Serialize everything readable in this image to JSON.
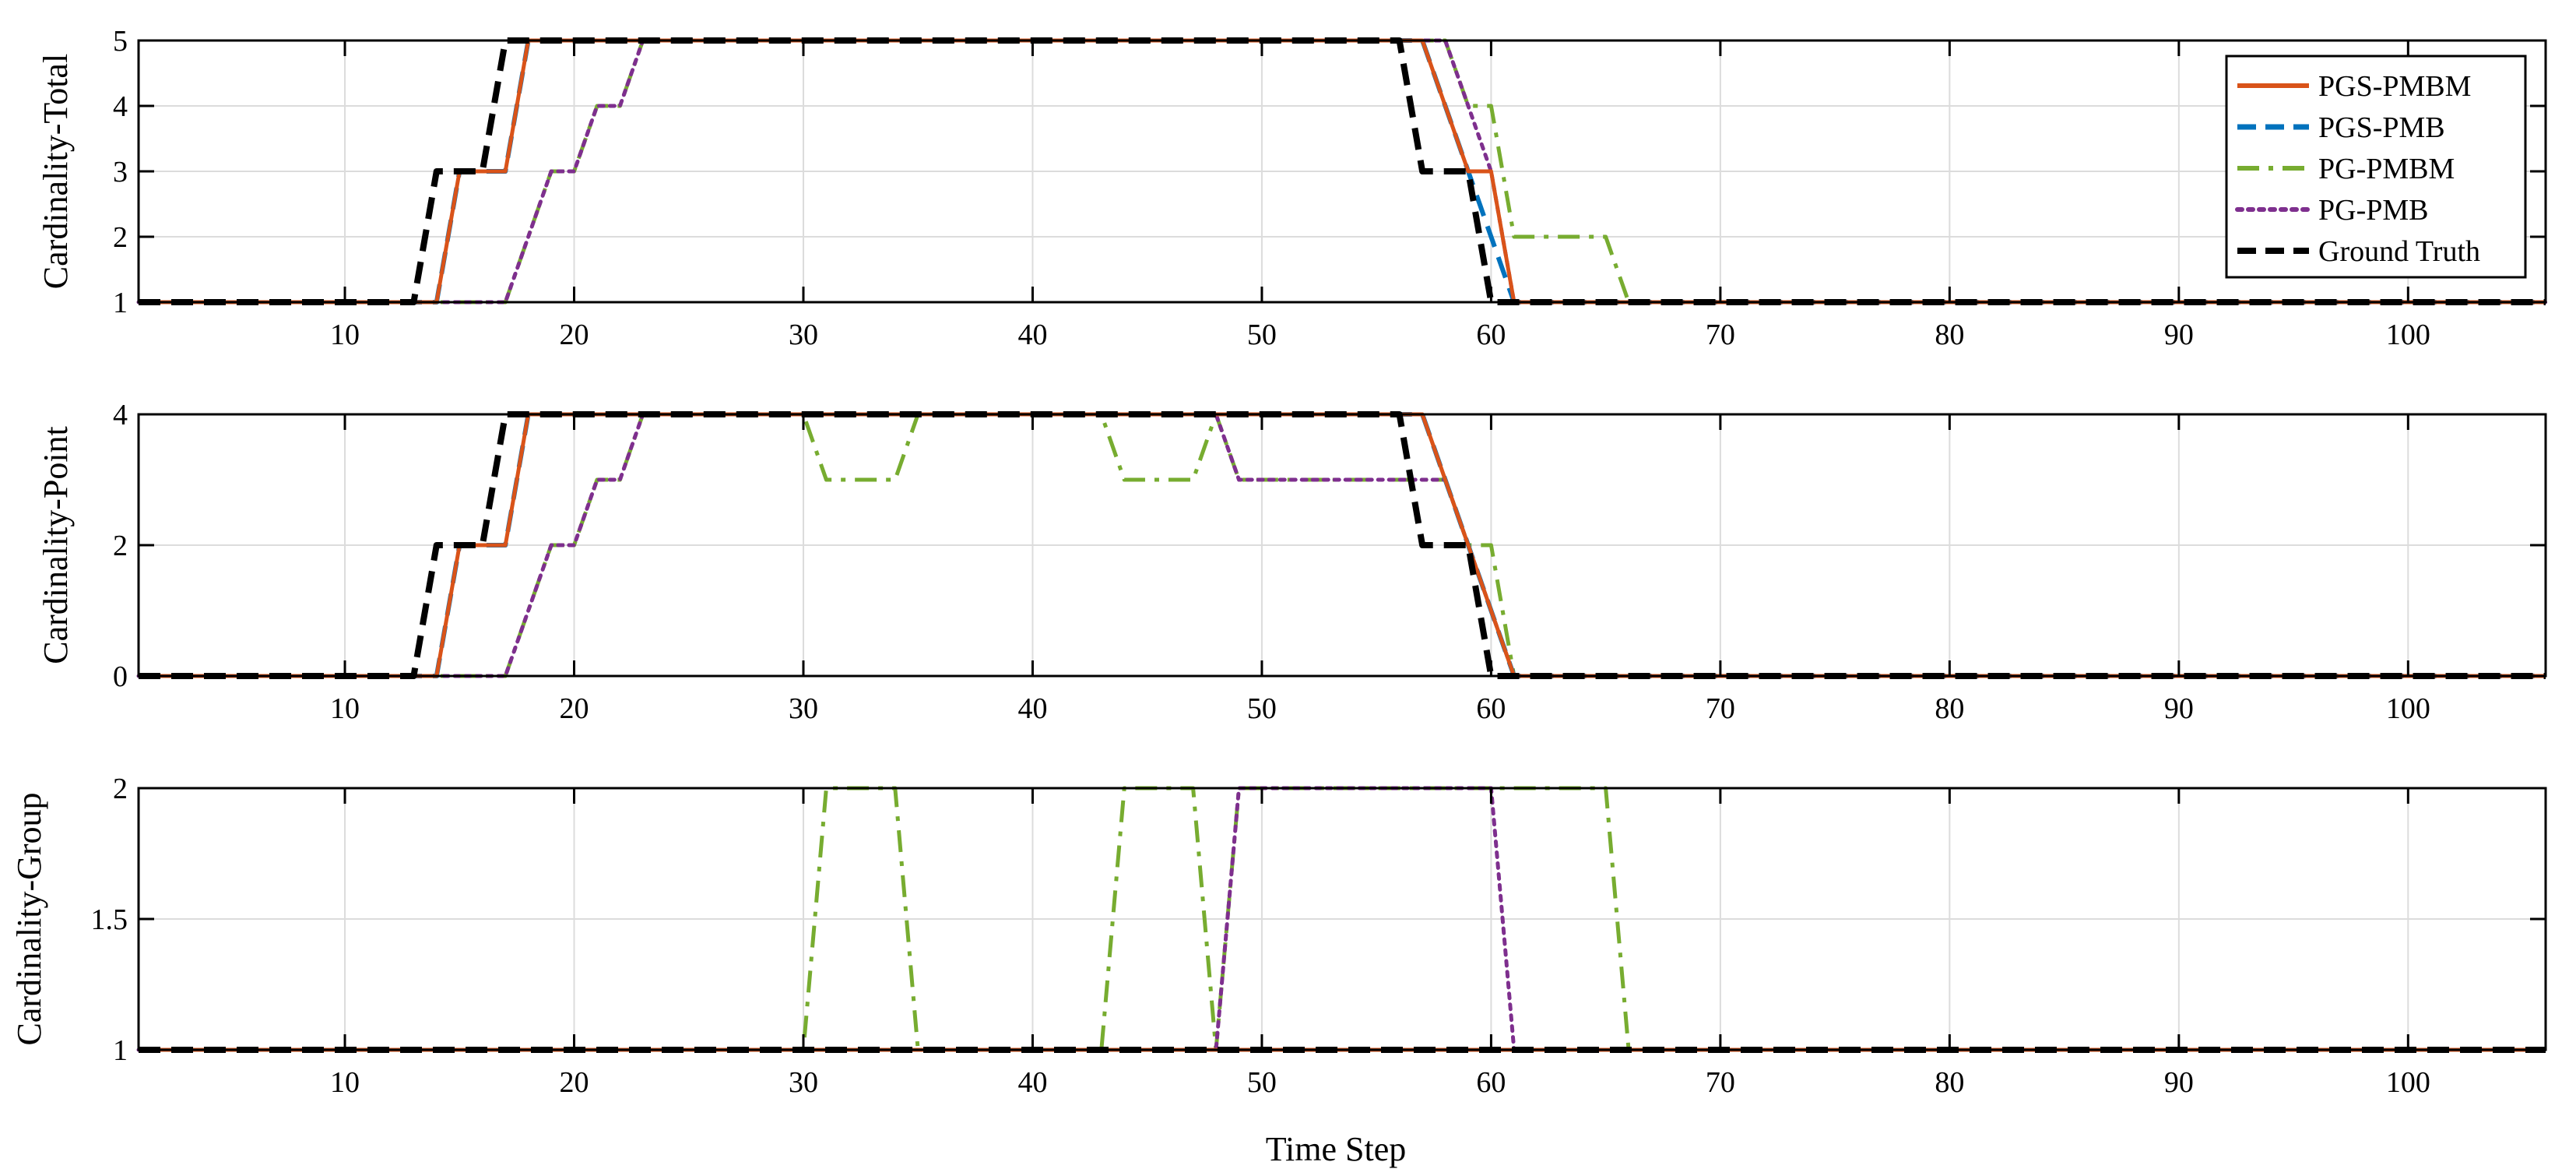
{
  "chart_data": {
    "type": "line",
    "xlabel": "Time Step",
    "xlim": [
      1,
      106
    ],
    "xticks": [
      10,
      20,
      30,
      40,
      50,
      60,
      70,
      80,
      90,
      100
    ],
    "grid": true,
    "legend": {
      "location": "top-right",
      "entries": [
        "PGS-PMBM",
        "PGS-PMB",
        "PG-PMBM",
        "PG-PMB",
        "Ground Truth"
      ]
    },
    "series_styles": [
      {
        "name": "PGS-PMBM",
        "color": "#D95319",
        "dash": "solid"
      },
      {
        "name": "PGS-PMB",
        "color": "#0072BD",
        "dash": "dashed"
      },
      {
        "name": "PG-PMBM",
        "color": "#77AC30",
        "dash": "dash-dot"
      },
      {
        "name": "PG-PMB",
        "color": "#7E2F8E",
        "dash": "dotted"
      },
      {
        "name": "Ground Truth",
        "color": "#000000",
        "dash": "dashed"
      }
    ],
    "subplots": [
      {
        "ylabel": "Cardinality-Total",
        "ylim": [
          1,
          5
        ],
        "yticks": [
          1,
          2,
          3,
          4,
          5
        ],
        "yticklabels": [
          "1",
          "2",
          "3",
          "4",
          "5"
        ],
        "series": [
          {
            "name": "PGS-PMBM",
            "points": [
              [
                1,
                1
              ],
              [
                14,
                1
              ],
              [
                15,
                3
              ],
              [
                17,
                3
              ],
              [
                18,
                5
              ],
              [
                57,
                5
              ],
              [
                58,
                4
              ],
              [
                59,
                3
              ],
              [
                60,
                3
              ],
              [
                61,
                1
              ],
              [
                106,
                1
              ]
            ]
          },
          {
            "name": "PGS-PMB",
            "points": [
              [
                1,
                1
              ],
              [
                14,
                1
              ],
              [
                15,
                3
              ],
              [
                17,
                3
              ],
              [
                18,
                5
              ],
              [
                57,
                5
              ],
              [
                58,
                4
              ],
              [
                59,
                3
              ],
              [
                60,
                2
              ],
              [
                61,
                1
              ],
              [
                106,
                1
              ]
            ]
          },
          {
            "name": "PG-PMBM",
            "points": [
              [
                1,
                1
              ],
              [
                17,
                1
              ],
              [
                19,
                3
              ],
              [
                20,
                3
              ],
              [
                21,
                4
              ],
              [
                22,
                4
              ],
              [
                23,
                5
              ],
              [
                58,
                5
              ],
              [
                59,
                4
              ],
              [
                60,
                4
              ],
              [
                61,
                2
              ],
              [
                65,
                2
              ],
              [
                66,
                1
              ],
              [
                106,
                1
              ]
            ]
          },
          {
            "name": "PG-PMB",
            "points": [
              [
                1,
                1
              ],
              [
                17,
                1
              ],
              [
                19,
                3
              ],
              [
                20,
                3
              ],
              [
                21,
                4
              ],
              [
                22,
                4
              ],
              [
                23,
                5
              ],
              [
                58,
                5
              ],
              [
                59,
                4
              ],
              [
                60,
                3
              ],
              [
                61,
                1
              ],
              [
                106,
                1
              ]
            ]
          },
          {
            "name": "Ground Truth",
            "points": [
              [
                1,
                1
              ],
              [
                13,
                1
              ],
              [
                14,
                3
              ],
              [
                16,
                3
              ],
              [
                17,
                5
              ],
              [
                56,
                5
              ],
              [
                57,
                3
              ],
              [
                59,
                3
              ],
              [
                60,
                1
              ],
              [
                106,
                1
              ]
            ]
          }
        ]
      },
      {
        "ylabel": "Cardinality-Point",
        "ylim": [
          0,
          4
        ],
        "yticks": [
          0,
          2,
          4
        ],
        "yticklabels": [
          "0",
          "2",
          "4"
        ],
        "series": [
          {
            "name": "PGS-PMBM",
            "points": [
              [
                1,
                0
              ],
              [
                14,
                0
              ],
              [
                15,
                2
              ],
              [
                17,
                2
              ],
              [
                18,
                4
              ],
              [
                57,
                4
              ],
              [
                58,
                3
              ],
              [
                59,
                2
              ],
              [
                60,
                1
              ],
              [
                61,
                0
              ],
              [
                106,
                0
              ]
            ]
          },
          {
            "name": "PGS-PMB",
            "points": [
              [
                1,
                0
              ],
              [
                14,
                0
              ],
              [
                15,
                2
              ],
              [
                17,
                2
              ],
              [
                18,
                4
              ],
              [
                57,
                4
              ],
              [
                58,
                3
              ],
              [
                59,
                2
              ],
              [
                60,
                1
              ],
              [
                61,
                0
              ],
              [
                106,
                0
              ]
            ]
          },
          {
            "name": "PG-PMBM",
            "points": [
              [
                1,
                0
              ],
              [
                17,
                0
              ],
              [
                19,
                2
              ],
              [
                20,
                2
              ],
              [
                21,
                3
              ],
              [
                22,
                3
              ],
              [
                23,
                4
              ],
              [
                30,
                4
              ],
              [
                31,
                3
              ],
              [
                34,
                3
              ],
              [
                35,
                4
              ],
              [
                43,
                4
              ],
              [
                44,
                3
              ],
              [
                47,
                3
              ],
              [
                48,
                4
              ],
              [
                49,
                3
              ],
              [
                58,
                3
              ],
              [
                59,
                2
              ],
              [
                60,
                2
              ],
              [
                61,
                0
              ],
              [
                106,
                0
              ]
            ]
          },
          {
            "name": "PG-PMB",
            "points": [
              [
                1,
                0
              ],
              [
                17,
                0
              ],
              [
                19,
                2
              ],
              [
                20,
                2
              ],
              [
                21,
                3
              ],
              [
                22,
                3
              ],
              [
                23,
                4
              ],
              [
                48,
                4
              ],
              [
                49,
                3
              ],
              [
                58,
                3
              ],
              [
                59,
                2
              ],
              [
                60,
                1
              ],
              [
                61,
                0
              ],
              [
                106,
                0
              ]
            ]
          },
          {
            "name": "Ground Truth",
            "points": [
              [
                1,
                0
              ],
              [
                13,
                0
              ],
              [
                14,
                2
              ],
              [
                16,
                2
              ],
              [
                17,
                4
              ],
              [
                56,
                4
              ],
              [
                57,
                2
              ],
              [
                59,
                2
              ],
              [
                60,
                0
              ],
              [
                106,
                0
              ]
            ]
          }
        ]
      },
      {
        "ylabel": "Cardinality-Group",
        "ylim": [
          1,
          2
        ],
        "yticks": [
          1,
          1.5,
          2
        ],
        "yticklabels": [
          "1",
          "1.5",
          "2"
        ],
        "series": [
          {
            "name": "PGS-PMBM",
            "points": [
              [
                1,
                1
              ],
              [
                106,
                1
              ]
            ]
          },
          {
            "name": "PGS-PMB",
            "points": [
              [
                1,
                1
              ],
              [
                106,
                1
              ]
            ]
          },
          {
            "name": "PG-PMBM",
            "points": [
              [
                1,
                1
              ],
              [
                30,
                1
              ],
              [
                31,
                2
              ],
              [
                34,
                2
              ],
              [
                35,
                1
              ],
              [
                43,
                1
              ],
              [
                44,
                2
              ],
              [
                47,
                2
              ],
              [
                48,
                1
              ],
              [
                49,
                2
              ],
              [
                65,
                2
              ],
              [
                66,
                1
              ],
              [
                106,
                1
              ]
            ]
          },
          {
            "name": "PG-PMB",
            "points": [
              [
                1,
                1
              ],
              [
                48,
                1
              ],
              [
                49,
                2
              ],
              [
                60,
                2
              ],
              [
                61,
                1
              ],
              [
                106,
                1
              ]
            ]
          },
          {
            "name": "Ground Truth",
            "points": [
              [
                1,
                1
              ],
              [
                106,
                1
              ]
            ]
          }
        ]
      }
    ]
  }
}
